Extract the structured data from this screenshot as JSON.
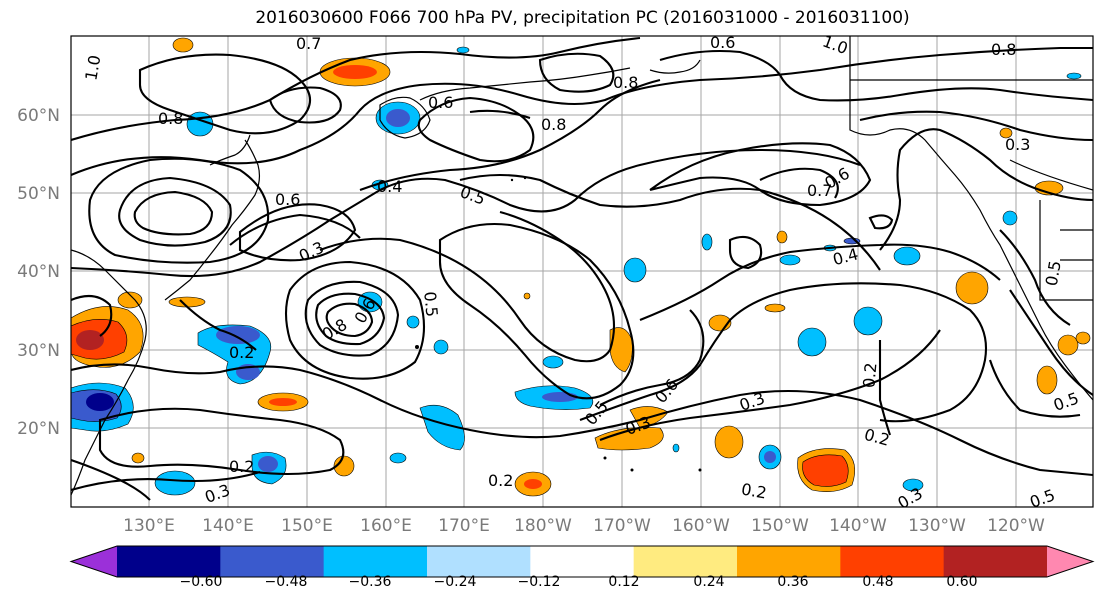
{
  "title": "2016030600 F066 700 hPa PV, precipitation PC (2016031000 - 2016031100)",
  "lat_ticks": [
    "60°N",
    "50°N",
    "40°N",
    "30°N",
    "20°N"
  ],
  "lon_ticks": [
    "130°E",
    "140°E",
    "150°E",
    "160°E",
    "170°E",
    "180°W",
    "170°W",
    "160°W",
    "150°W",
    "140°W",
    "130°W",
    "120°W"
  ],
  "colorbar": {
    "colors": [
      "#9b30d9",
      "#00008b",
      "#3a5acd",
      "#00bfff",
      "#b0e0ff",
      "#ffffff",
      "#ffeb80",
      "#ffa500",
      "#ff4000",
      "#b22222",
      "#ff88b0"
    ],
    "tick_labels": [
      "−0.60",
      "−0.48",
      "−0.36",
      "−0.24",
      "−0.12",
      "0.12",
      "0.24",
      "0.36",
      "0.48",
      "0.60"
    ]
  },
  "contour_labels": [
    "0.7",
    "0.6",
    "1.0",
    "0.8",
    "1.0",
    "0.8",
    "0.8",
    "0.6",
    "0.8",
    "0.6",
    "0.7",
    "0.3",
    "0.6",
    "0.5",
    "0.4",
    "0.5",
    "0.3",
    "0.2",
    "0.4",
    "0.2",
    "0.2",
    "0.3",
    "0.2",
    "0.2",
    "0.3",
    "0.2",
    "0.5",
    "0.3",
    "0.3",
    "0.6",
    "0.5",
    "0.8",
    "0.6",
    "0.5",
    "0.5"
  ]
}
